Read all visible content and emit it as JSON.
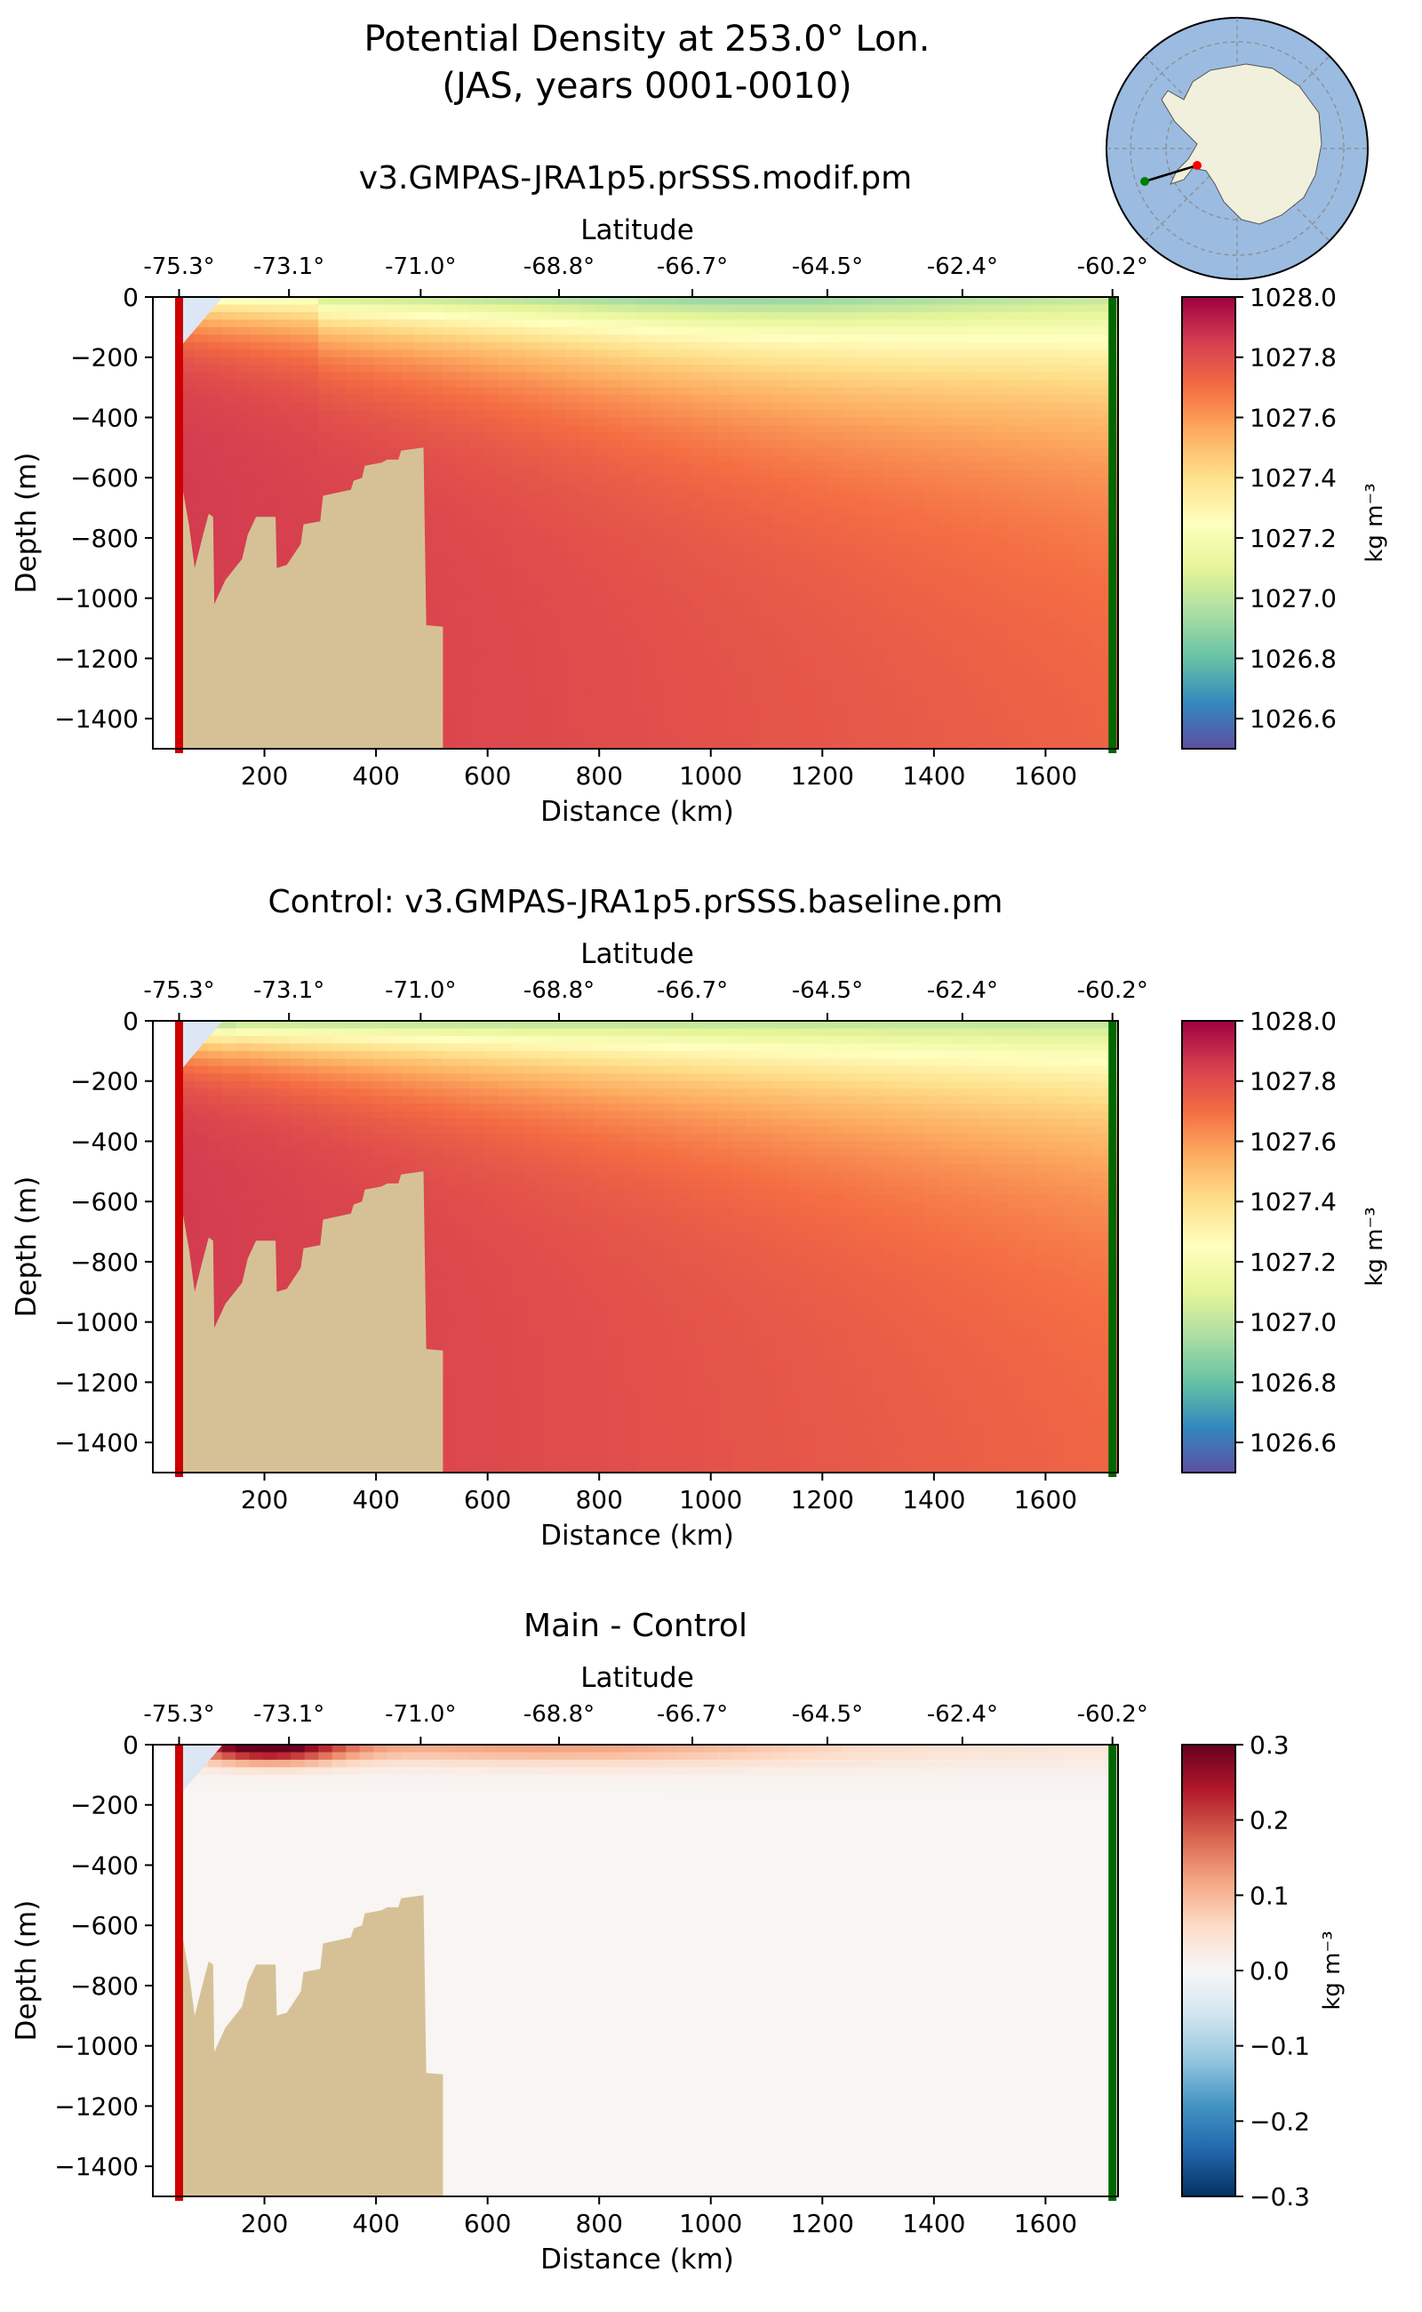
{
  "figure": {
    "title_line1": "Potential Density at 253.0° Lon.",
    "title_line2": "(JAS, years 0001-0010)"
  },
  "inset_map": {
    "description_name": "antarctica-inset-map",
    "ocean_color": "#9bbbe0",
    "land_color": "#f0f0dc",
    "transect_start_color": "#008000",
    "transect_end_color": "#ff0000"
  },
  "chart_data": [
    {
      "type": "heatmap",
      "title": "v3.GMPAS-JRA1p5.prSSS.modif.pm",
      "xlabel": "Distance (km)",
      "ylabel": "Depth (m)",
      "top_axis_label": "Latitude",
      "x_ticks": [
        200,
        400,
        600,
        800,
        1000,
        1200,
        1400,
        1600
      ],
      "y_ticks": [
        0,
        -200,
        -400,
        -600,
        -800,
        -1000,
        -1200,
        -1400
      ],
      "x_tick_labels": [
        "200",
        "400",
        "600",
        "800",
        "1000",
        "1200",
        "1400",
        "1600"
      ],
      "y_tick_labels": [
        "0",
        "−200",
        "−400",
        "−600",
        "−800",
        "−1000",
        "−1200",
        "−1400"
      ],
      "top_tick_positions_km": [
        47,
        244,
        480,
        728,
        967,
        1209,
        1451,
        1720
      ],
      "top_tick_labels": [
        "-75.3°",
        "-73.1°",
        "-71.0°",
        "-68.8°",
        "-66.7°",
        "-64.5°",
        "-62.4°",
        "-60.2°"
      ],
      "xlim": [
        0,
        1730
      ],
      "ylim": [
        -1500,
        0
      ],
      "colorbar": {
        "label": "kg m⁻³",
        "vmin": 1026.5,
        "vmax": 1028.0,
        "ticks": [
          1028.0,
          1027.8,
          1027.6,
          1027.4,
          1027.2,
          1027.0,
          1026.8,
          1026.6
        ],
        "tick_labels": [
          "1028.0",
          "1027.8",
          "1027.6",
          "1027.4",
          "1027.2",
          "1027.0",
          "1026.8",
          "1026.6"
        ],
        "colormap": "Spectral_r"
      },
      "field": {
        "surface_min": 1026.95,
        "surface_min_position_km": 1100,
        "deep_value": 1027.85,
        "note": "Density increases with depth; light water near surface, dense water below"
      },
      "transect_start_km": 47,
      "transect_end_km": 1720
    },
    {
      "type": "heatmap",
      "title": "Control: v3.GMPAS-JRA1p5.prSSS.baseline.pm",
      "xlabel": "Distance (km)",
      "ylabel": "Depth (m)",
      "top_axis_label": "Latitude",
      "x_ticks": [
        200,
        400,
        600,
        800,
        1000,
        1200,
        1400,
        1600
      ],
      "y_ticks": [
        0,
        -200,
        -400,
        -600,
        -800,
        -1000,
        -1200,
        -1400
      ],
      "x_tick_labels": [
        "200",
        "400",
        "600",
        "800",
        "1000",
        "1200",
        "1400",
        "1600"
      ],
      "y_tick_labels": [
        "0",
        "−200",
        "−400",
        "−600",
        "−800",
        "−1000",
        "−1200",
        "−1400"
      ],
      "top_tick_positions_km": [
        47,
        244,
        480,
        728,
        967,
        1209,
        1451,
        1720
      ],
      "top_tick_labels": [
        "-75.3°",
        "-73.1°",
        "-71.0°",
        "-68.8°",
        "-66.7°",
        "-64.5°",
        "-62.4°",
        "-60.2°"
      ],
      "xlim": [
        0,
        1730
      ],
      "ylim": [
        -1500,
        0
      ],
      "colorbar": {
        "label": "kg m⁻³",
        "vmin": 1026.5,
        "vmax": 1028.0,
        "ticks": [
          1028.0,
          1027.8,
          1027.6,
          1027.4,
          1027.2,
          1027.0,
          1026.8,
          1026.6
        ],
        "tick_labels": [
          "1028.0",
          "1027.8",
          "1027.6",
          "1027.4",
          "1027.2",
          "1027.0",
          "1026.8",
          "1026.6"
        ],
        "colormap": "Spectral_r"
      },
      "field": {
        "surface_min": 1026.9,
        "surface_min_position_km": 200,
        "deep_value": 1027.85,
        "note": "Similar to main; slightly lighter surface water near the coast"
      },
      "transect_start_km": 47,
      "transect_end_km": 1720
    },
    {
      "type": "heatmap",
      "title": "Main - Control",
      "xlabel": "Distance (km)",
      "ylabel": "Depth (m)",
      "top_axis_label": "Latitude",
      "x_ticks": [
        200,
        400,
        600,
        800,
        1000,
        1200,
        1400,
        1600
      ],
      "y_ticks": [
        0,
        -200,
        -400,
        -600,
        -800,
        -1000,
        -1200,
        -1400
      ],
      "x_tick_labels": [
        "200",
        "400",
        "600",
        "800",
        "1000",
        "1200",
        "1400",
        "1600"
      ],
      "y_tick_labels": [
        "0",
        "−200",
        "−400",
        "−600",
        "−800",
        "−1000",
        "−1200",
        "−1400"
      ],
      "top_tick_positions_km": [
        47,
        244,
        480,
        728,
        967,
        1209,
        1451,
        1720
      ],
      "top_tick_labels": [
        "-75.3°",
        "-73.1°",
        "-71.0°",
        "-68.8°",
        "-66.7°",
        "-64.5°",
        "-62.4°",
        "-60.2°"
      ],
      "xlim": [
        0,
        1730
      ],
      "ylim": [
        -1500,
        0
      ],
      "colorbar": {
        "label": "kg m⁻³",
        "vmin": -0.3,
        "vmax": 0.3,
        "ticks": [
          0.3,
          0.2,
          0.1,
          0.0,
          -0.1,
          -0.2,
          -0.3
        ],
        "tick_labels": [
          "0.3",
          "0.2",
          "0.1",
          "0.0",
          "−0.1",
          "−0.2",
          "−0.3"
        ],
        "colormap": "RdBu_r"
      },
      "field": {
        "surface_max": 0.28,
        "surface_max_position_km": 200,
        "deep_value": 0.005,
        "note": "Positive anomaly concentrated in upper ~100 m near the shelf"
      },
      "transect_start_km": 47,
      "transect_end_km": 1720
    }
  ],
  "bathymetry_km_depth": [
    [
      47,
      -570
    ],
    [
      65,
      -760
    ],
    [
      75,
      -900
    ],
    [
      90,
      -790
    ],
    [
      100,
      -720
    ],
    [
      108,
      -730
    ],
    [
      110,
      -1020
    ],
    [
      130,
      -940
    ],
    [
      160,
      -870
    ],
    [
      170,
      -790
    ],
    [
      185,
      -730
    ],
    [
      205,
      -730
    ],
    [
      220,
      -730
    ],
    [
      222,
      -900
    ],
    [
      240,
      -890
    ],
    [
      265,
      -820
    ],
    [
      270,
      -755
    ],
    [
      300,
      -745
    ],
    [
      305,
      -660
    ],
    [
      355,
      -640
    ],
    [
      360,
      -610
    ],
    [
      375,
      -600
    ],
    [
      380,
      -560
    ],
    [
      410,
      -550
    ],
    [
      420,
      -540
    ],
    [
      440,
      -540
    ],
    [
      445,
      -510
    ],
    [
      485,
      -500
    ],
    [
      490,
      -1090
    ],
    [
      520,
      -1095
    ],
    [
      520,
      -1500
    ]
  ]
}
